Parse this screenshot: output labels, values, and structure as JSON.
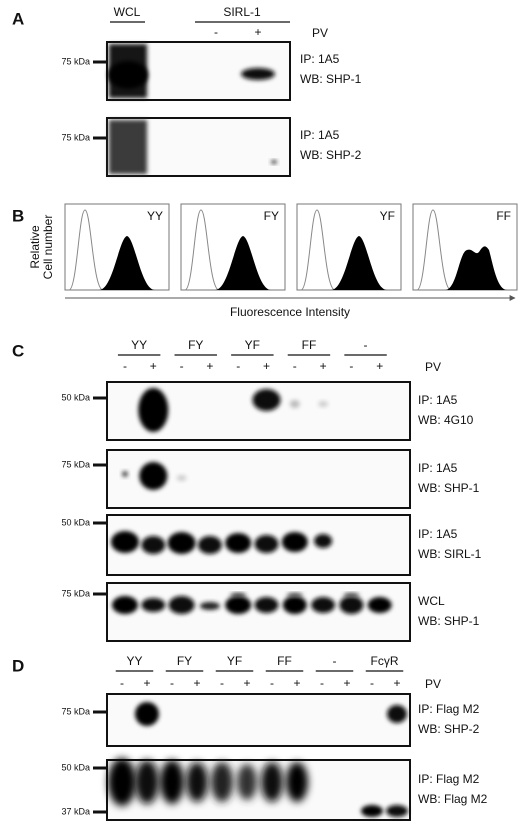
{
  "panels": [
    {
      "label": "A",
      "header": {
        "wcl": "WCL",
        "group": "SIRL-1",
        "lanes": [
          "-",
          "+"
        ],
        "pv": "PV"
      },
      "blots": [
        {
          "markers": [
            "75 kDa"
          ],
          "lines": [
            "IP: 1A5",
            "WB: SHP-1"
          ]
        },
        {
          "markers": [
            "75 kDa"
          ],
          "lines": [
            "IP: 1A5",
            "WB: SHP-2"
          ]
        }
      ]
    },
    {
      "label": "B",
      "y_label": [
        "Relative",
        "Cell number"
      ],
      "x_label": "Fluorescence Intensity",
      "histograms": [
        "YY",
        "FY",
        "YF",
        "FF"
      ]
    },
    {
      "label": "C",
      "groups": [
        "YY",
        "FY",
        "YF",
        "FF",
        "-"
      ],
      "lanes": [
        "-",
        "+"
      ],
      "pv": "PV",
      "blots": [
        {
          "markers": [
            "50 kDa"
          ],
          "lines": [
            "IP: 1A5",
            "WB: 4G10"
          ]
        },
        {
          "markers": [
            "75 kDa"
          ],
          "lines": [
            "IP: 1A5",
            "WB: SHP-1"
          ]
        },
        {
          "markers": [
            "50 kDa"
          ],
          "lines": [
            "IP: 1A5",
            "WB: SIRL-1"
          ]
        },
        {
          "markers": [
            "75 kDa"
          ],
          "lines": [
            "WCL",
            "WB: SHP-1"
          ]
        }
      ]
    },
    {
      "label": "D",
      "groups": [
        "YY",
        "FY",
        "YF",
        "FF",
        "-",
        "FcγR"
      ],
      "lanes": [
        "-",
        "+"
      ],
      "pv": "PV",
      "blots": [
        {
          "markers": [
            "75 kDa"
          ],
          "lines": [
            "IP: Flag M2",
            "WB: SHP-2"
          ]
        },
        {
          "markers": [
            "50 kDa",
            "37 kDa"
          ],
          "lines": [
            "IP: Flag M2",
            "WB: Flag M2"
          ]
        }
      ]
    }
  ]
}
